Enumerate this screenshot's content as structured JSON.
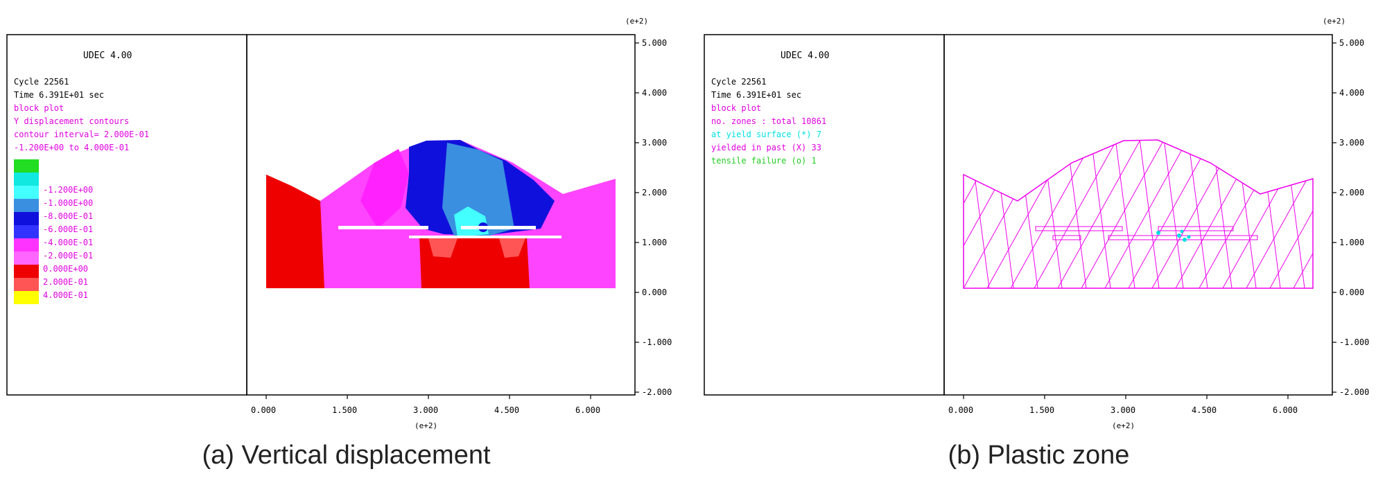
{
  "panels": [
    {
      "id": "a",
      "title": "UDEC 4.00",
      "cycle": "Cycle   22561",
      "time": "Time  6.391E+01 sec",
      "plot_label": "block plot",
      "info_lines": [
        {
          "text": "Y displacement contours",
          "color": "#e000e0"
        },
        {
          "text": "contour interval= 2.000E-01",
          "color": "#e000e0"
        },
        {
          "text": "-1.200E+00 to  4.000E-01",
          "color": "#e000e0"
        }
      ],
      "legend": [
        {
          "label": "",
          "color": "#22dd22"
        },
        {
          "label": "-1.200E+00",
          "color": "#11e8e0"
        },
        {
          "label": "-1.000E+00",
          "color": "#44ffff"
        },
        {
          "label": "-8.000E-01",
          "color": "#3a8fe0"
        },
        {
          "label": "-6.000E-01",
          "color": "#1010dd"
        },
        {
          "label": "-4.000E-01",
          "color": "#3333ff"
        },
        {
          "label": "-2.000E-01",
          "color": "#ff33ff"
        },
        {
          "label": "0.000E+00",
          "color": "#ff66ff"
        },
        {
          "label": "2.000E-01",
          "color": "#ee0000"
        },
        {
          "label": "4.000E-01",
          "color": "#ff5555"
        },
        {
          "label": "",
          "color": "#ffff00"
        }
      ],
      "caption": "(a) Vertical displacement"
    },
    {
      "id": "b",
      "title": "UDEC 4.00",
      "cycle": "Cycle   22561",
      "time": "Time  6.391E+01 sec",
      "plot_label": "block plot",
      "info_lines": [
        {
          "text": "no. zones : total    10861",
          "color": "#e000e0"
        },
        {
          "text": "at yield surface (*)     7",
          "color": "#00e0e0"
        },
        {
          "text": "yielded in past (X)    33",
          "color": "#e000e0"
        },
        {
          "text": "tensile failure  (o)     1",
          "color": "#22cc22"
        }
      ],
      "legend": [],
      "caption": "(b) Plastic zone"
    }
  ],
  "axes": {
    "exponent_label": "(e+2)",
    "x_ticks": [
      "0.000",
      "1.500",
      "3.000",
      "4.500",
      "6.000"
    ],
    "y_ticks": [
      "5.000",
      "4.000",
      "3.000",
      "2.000",
      "1.000",
      "0.000",
      "-1.000",
      "-2.000"
    ]
  },
  "colors": {
    "red_zone": "#ee0000",
    "pink_zone": "#ff44ff",
    "magenta_zone": "#ff22ff",
    "blue_zone": "#1010dd",
    "light_blue_zone": "#3a8fe0",
    "cyan_zone": "#44ffff",
    "mesh_line": "#ee00ee",
    "frame": "#000000"
  }
}
